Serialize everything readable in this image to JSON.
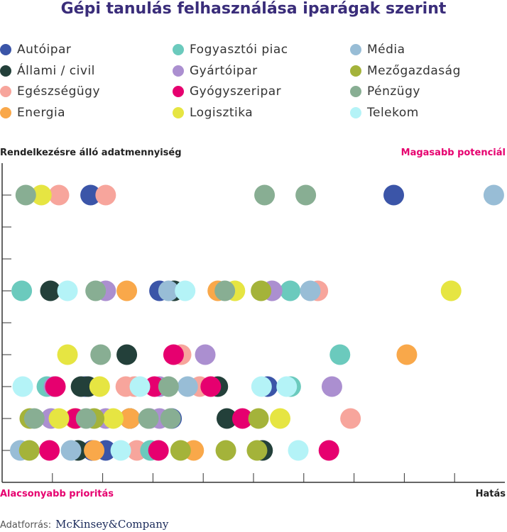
{
  "title": "Gépi tanulás felhasználása iparágak szerint",
  "source_label": "Adatforrás:",
  "source_brand": "McKinsey&Company",
  "corners": {
    "top_left": "Rendelkezésre álló adatmennyiség",
    "top_right": "Magasabb potenciál",
    "bottom_left": "Alacsonyabb prioritás",
    "bottom_right": "Hatás"
  },
  "chart_data": {
    "type": "scatter",
    "title": "Gépi tanulás felhasználása iparágak szerint",
    "xlabel": "Hatás",
    "ylabel": "Rendelkezésre álló adatmennyiség",
    "xlim": [
      0,
      100
    ],
    "ylim": [
      0,
      10
    ],
    "grid": false,
    "legend_position": "top",
    "series": [
      {
        "name": "Autóipar",
        "color": "#3b55a8",
        "points": [
          [
            17.6,
            9
          ],
          [
            77.9,
            9
          ],
          [
            31.3,
            6
          ],
          [
            16.5,
            3
          ],
          [
            52.8,
            3
          ],
          [
            33.7,
            2
          ],
          [
            17.9,
            1
          ],
          [
            20.6,
            1
          ]
        ]
      },
      {
        "name": "Állami / civil",
        "color": "#23403a",
        "points": [
          [
            9.6,
            6
          ],
          [
            34.2,
            6
          ],
          [
            24.8,
            4
          ],
          [
            15.7,
            3
          ],
          [
            17.1,
            3
          ],
          [
            42.9,
            3
          ],
          [
            25.4,
            2
          ],
          [
            44.7,
            2
          ],
          [
            15.1,
            1
          ],
          [
            51.8,
            1
          ]
        ]
      },
      {
        "name": "Egészségügy",
        "color": "#f7a59c",
        "points": [
          [
            11.3,
            9
          ],
          [
            20.6,
            9
          ],
          [
            62.8,
            6
          ],
          [
            35.6,
            4
          ],
          [
            24.6,
            3
          ],
          [
            26.3,
            3
          ],
          [
            39.3,
            3
          ],
          [
            69.3,
            2
          ],
          [
            26.8,
            1
          ]
        ]
      },
      {
        "name": "Energia",
        "color": "#f9a84a",
        "points": [
          [
            24.8,
            6
          ],
          [
            42.9,
            6
          ],
          [
            80.5,
            4
          ],
          [
            14.4,
            2
          ],
          [
            25.4,
            2
          ],
          [
            18.3,
            1
          ],
          [
            38.1,
            1
          ]
        ]
      },
      {
        "name": "Fogyasztói piac",
        "color": "#6bcabd",
        "points": [
          [
            3.9,
            6
          ],
          [
            57.3,
            6
          ],
          [
            67.2,
            4
          ],
          [
            8.9,
            3
          ],
          [
            57.4,
            3
          ],
          [
            29.5,
            1
          ]
        ]
      },
      {
        "name": "Gyártóipar",
        "color": "#ab8fd0",
        "points": [
          [
            20.6,
            6
          ],
          [
            53.7,
            6
          ],
          [
            40.4,
            4
          ],
          [
            10.3,
            3
          ],
          [
            31.3,
            3
          ],
          [
            65.6,
            3
          ],
          [
            9.7,
            2
          ],
          [
            20.6,
            2
          ],
          [
            29.3,
            2
          ],
          [
            31.3,
            2
          ]
        ]
      },
      {
        "name": "Gyógyszeripar",
        "color": "#e6006f",
        "points": [
          [
            34.1,
            4
          ],
          [
            10.6,
            3
          ],
          [
            30.3,
            3
          ],
          [
            41.5,
            3
          ],
          [
            47.8,
            2
          ],
          [
            14.6,
            2
          ],
          [
            9.4,
            1
          ],
          [
            31.1,
            1
          ],
          [
            65,
            1
          ]
        ]
      },
      {
        "name": "Logisztika",
        "color": "#e6e542",
        "points": [
          [
            7.8,
            9
          ],
          [
            89.3,
            6
          ],
          [
            46.3,
            6
          ],
          [
            13,
            4
          ],
          [
            19.4,
            3
          ],
          [
            11.3,
            2
          ],
          [
            22.1,
            2
          ],
          [
            55.3,
            2
          ]
        ]
      },
      {
        "name": "Média",
        "color": "#98bdd6",
        "points": [
          [
            97.8,
            9
          ],
          [
            61.3,
            6
          ],
          [
            33.1,
            6
          ],
          [
            36.9,
            3
          ],
          [
            3.6,
            1
          ],
          [
            13.7,
            1
          ]
        ]
      },
      {
        "name": "Mezőgazdaság",
        "color": "#a4b33a",
        "points": [
          [
            51.5,
            6
          ],
          [
            18.3,
            2
          ],
          [
            5.5,
            2
          ],
          [
            51,
            2
          ],
          [
            5.4,
            1
          ],
          [
            35.5,
            1
          ],
          [
            44.5,
            1
          ],
          [
            50.7,
            1
          ]
        ]
      },
      {
        "name": "Pénzügy",
        "color": "#88ae93",
        "points": [
          [
            4.7,
            9
          ],
          [
            52.2,
            9
          ],
          [
            60.4,
            9
          ],
          [
            18.6,
            6
          ],
          [
            44.3,
            6
          ],
          [
            19.6,
            4
          ],
          [
            33.1,
            3
          ],
          [
            6.4,
            2
          ],
          [
            16.7,
            2
          ],
          [
            33.5,
            2
          ],
          [
            29.1,
            2
          ]
        ]
      },
      {
        "name": "Telekom",
        "color": "#b4f3f7",
        "points": [
          [
            13,
            6
          ],
          [
            36.4,
            6
          ],
          [
            4.1,
            3
          ],
          [
            27.4,
            3
          ],
          [
            51.6,
            3
          ],
          [
            56.6,
            3
          ],
          [
            23.6,
            1
          ],
          [
            58.9,
            1
          ]
        ]
      }
    ]
  }
}
